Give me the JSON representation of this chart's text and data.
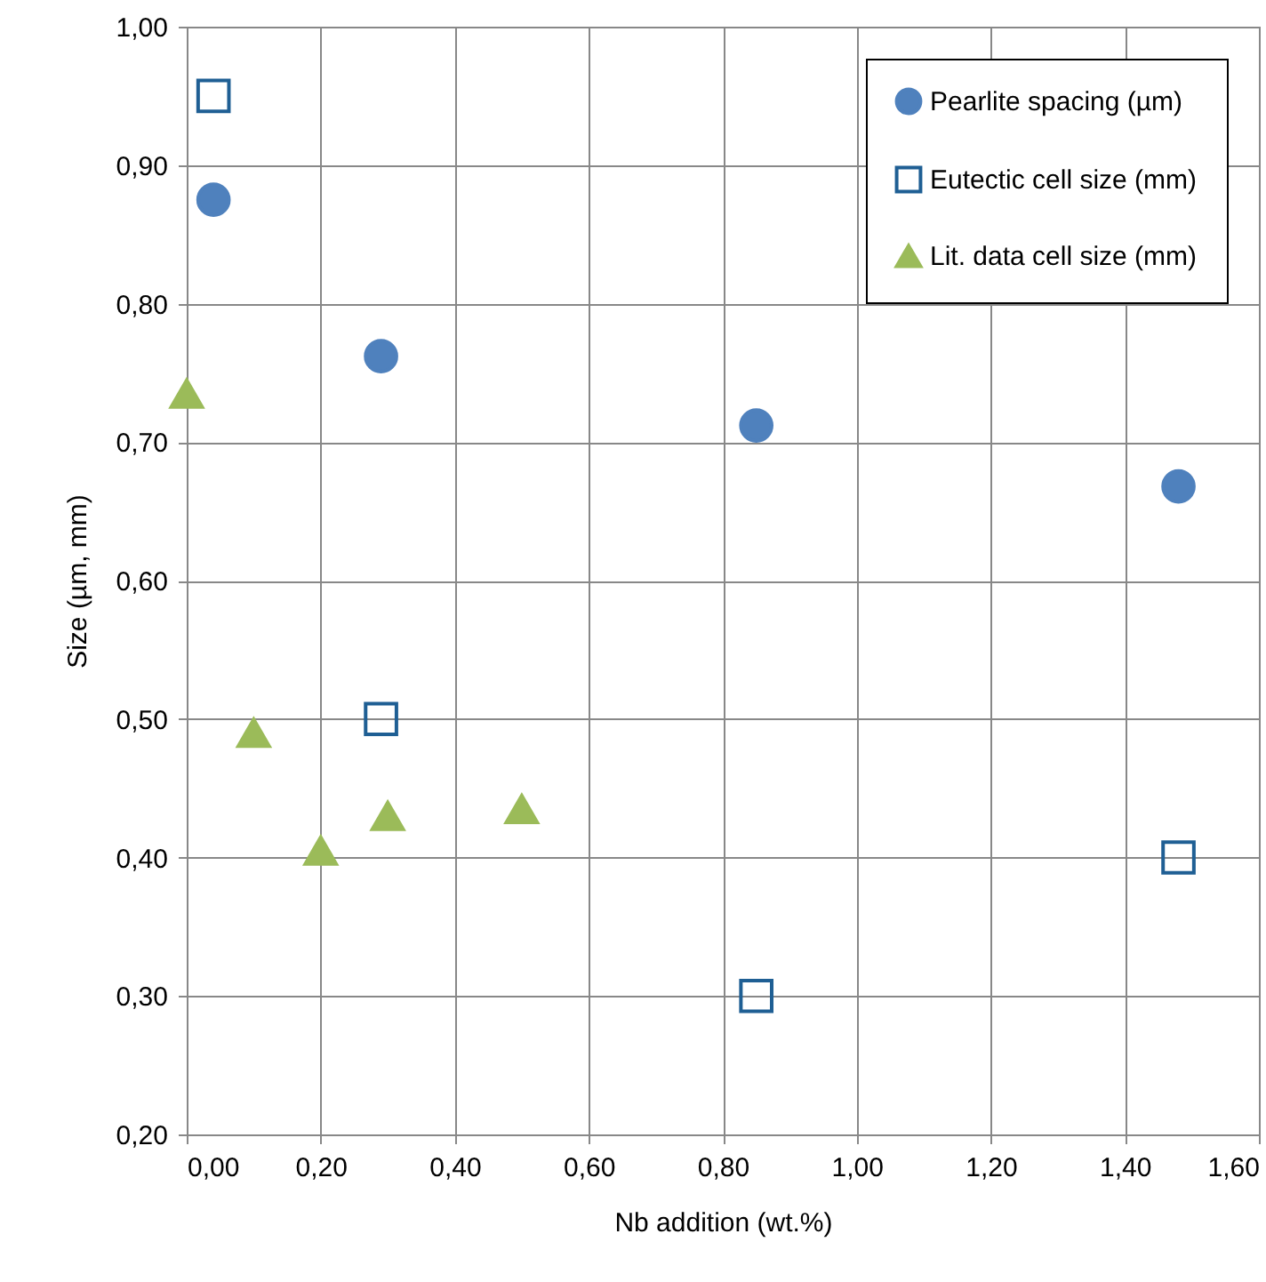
{
  "chart_data": {
    "type": "scatter",
    "xlabel": "Nb addition (wt.%)",
    "ylabel": "Size (µm, mm)",
    "series": [
      {
        "name": "Pearlite spacing (µm)",
        "color": "#4f81bd",
        "marker": "circle",
        "x": [
          0.04,
          0.29,
          0.85,
          1.48
        ],
        "values": [
          0.875,
          0.762,
          0.712,
          0.668
        ]
      },
      {
        "name": "Eutectic cell size (mm)",
        "color": "#1f5f94",
        "marker": "square",
        "x": [
          0.04,
          0.29,
          0.85,
          1.48
        ],
        "values": [
          0.95,
          0.5,
          0.3,
          0.4
        ]
      },
      {
        "name": "Lit. data cell size (mm)",
        "color": "#9bbb59",
        "marker": "triangle",
        "x": [
          0.0,
          0.1,
          0.2,
          0.3,
          0.5
        ],
        "values": [
          0.735,
          0.49,
          0.405,
          0.43,
          0.435
        ]
      }
    ],
    "xlim": [
      0,
      1.6
    ],
    "xticks": [
      {
        "value": 0,
        "label": "0,00"
      },
      {
        "value": 0.2,
        "label": "0,20"
      },
      {
        "value": 0.4,
        "label": "0,40"
      },
      {
        "value": 0.6,
        "label": "0,60"
      },
      {
        "value": 0.8,
        "label": "0,80"
      },
      {
        "value": 1.0,
        "label": "1,00"
      },
      {
        "value": 1.2,
        "label": "1,20"
      },
      {
        "value": 1.4,
        "label": "1,40"
      },
      {
        "value": 1.6,
        "label": "1,60"
      }
    ],
    "ylim": [
      0.2,
      1.0
    ],
    "yticks": [
      {
        "value": 0.2,
        "label": "0,20"
      },
      {
        "value": 0.3,
        "label": "0,30"
      },
      {
        "value": 0.4,
        "label": "0,40"
      },
      {
        "value": 0.5,
        "label": "0,50"
      },
      {
        "value": 0.6,
        "label": "0,60"
      },
      {
        "value": 0.7,
        "label": "0,70"
      },
      {
        "value": 0.8,
        "label": "0,80"
      },
      {
        "value": 0.9,
        "label": "0,90"
      },
      {
        "value": 1.0,
        "label": "1,00"
      }
    ],
    "grid": true,
    "legend": "top right"
  }
}
